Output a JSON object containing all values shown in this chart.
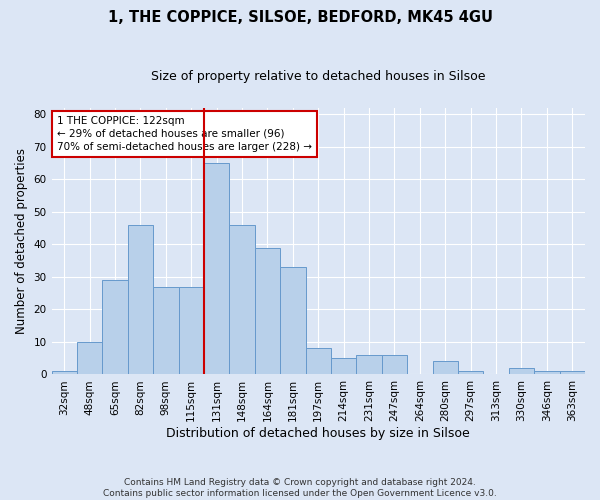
{
  "title": "1, THE COPPICE, SILSOE, BEDFORD, MK45 4GU",
  "subtitle": "Size of property relative to detached houses in Silsoe",
  "xlabel": "Distribution of detached houses by size in Silsoe",
  "ylabel": "Number of detached properties",
  "footer_line1": "Contains HM Land Registry data © Crown copyright and database right 2024.",
  "footer_line2": "Contains public sector information licensed under the Open Government Licence v3.0.",
  "bin_labels": [
    "32sqm",
    "48sqm",
    "65sqm",
    "82sqm",
    "98sqm",
    "115sqm",
    "131sqm",
    "148sqm",
    "164sqm",
    "181sqm",
    "197sqm",
    "214sqm",
    "231sqm",
    "247sqm",
    "264sqm",
    "280sqm",
    "297sqm",
    "313sqm",
    "330sqm",
    "346sqm",
    "363sqm"
  ],
  "bin_values": [
    1,
    10,
    29,
    46,
    27,
    27,
    65,
    46,
    39,
    33,
    8,
    5,
    6,
    6,
    0,
    4,
    1,
    0,
    2,
    1,
    1
  ],
  "bar_color": "#b8d0ea",
  "bar_edge_color": "#6699cc",
  "vline_color": "#cc0000",
  "annotation_text": "1 THE COPPICE: 122sqm\n← 29% of detached houses are smaller (96)\n70% of semi-detached houses are larger (228) →",
  "annotation_box_color": "white",
  "annotation_box_edge_color": "#cc0000",
  "ylim": [
    0,
    82
  ],
  "yticks": [
    0,
    10,
    20,
    30,
    40,
    50,
    60,
    70,
    80
  ],
  "background_color": "#dce6f5",
  "plot_background_color": "#dce6f5",
  "title_fontsize": 10.5,
  "subtitle_fontsize": 9,
  "ylabel_fontsize": 8.5,
  "xlabel_fontsize": 9,
  "tick_fontsize": 7.5,
  "annotation_fontsize": 7.5,
  "footer_fontsize": 6.5
}
